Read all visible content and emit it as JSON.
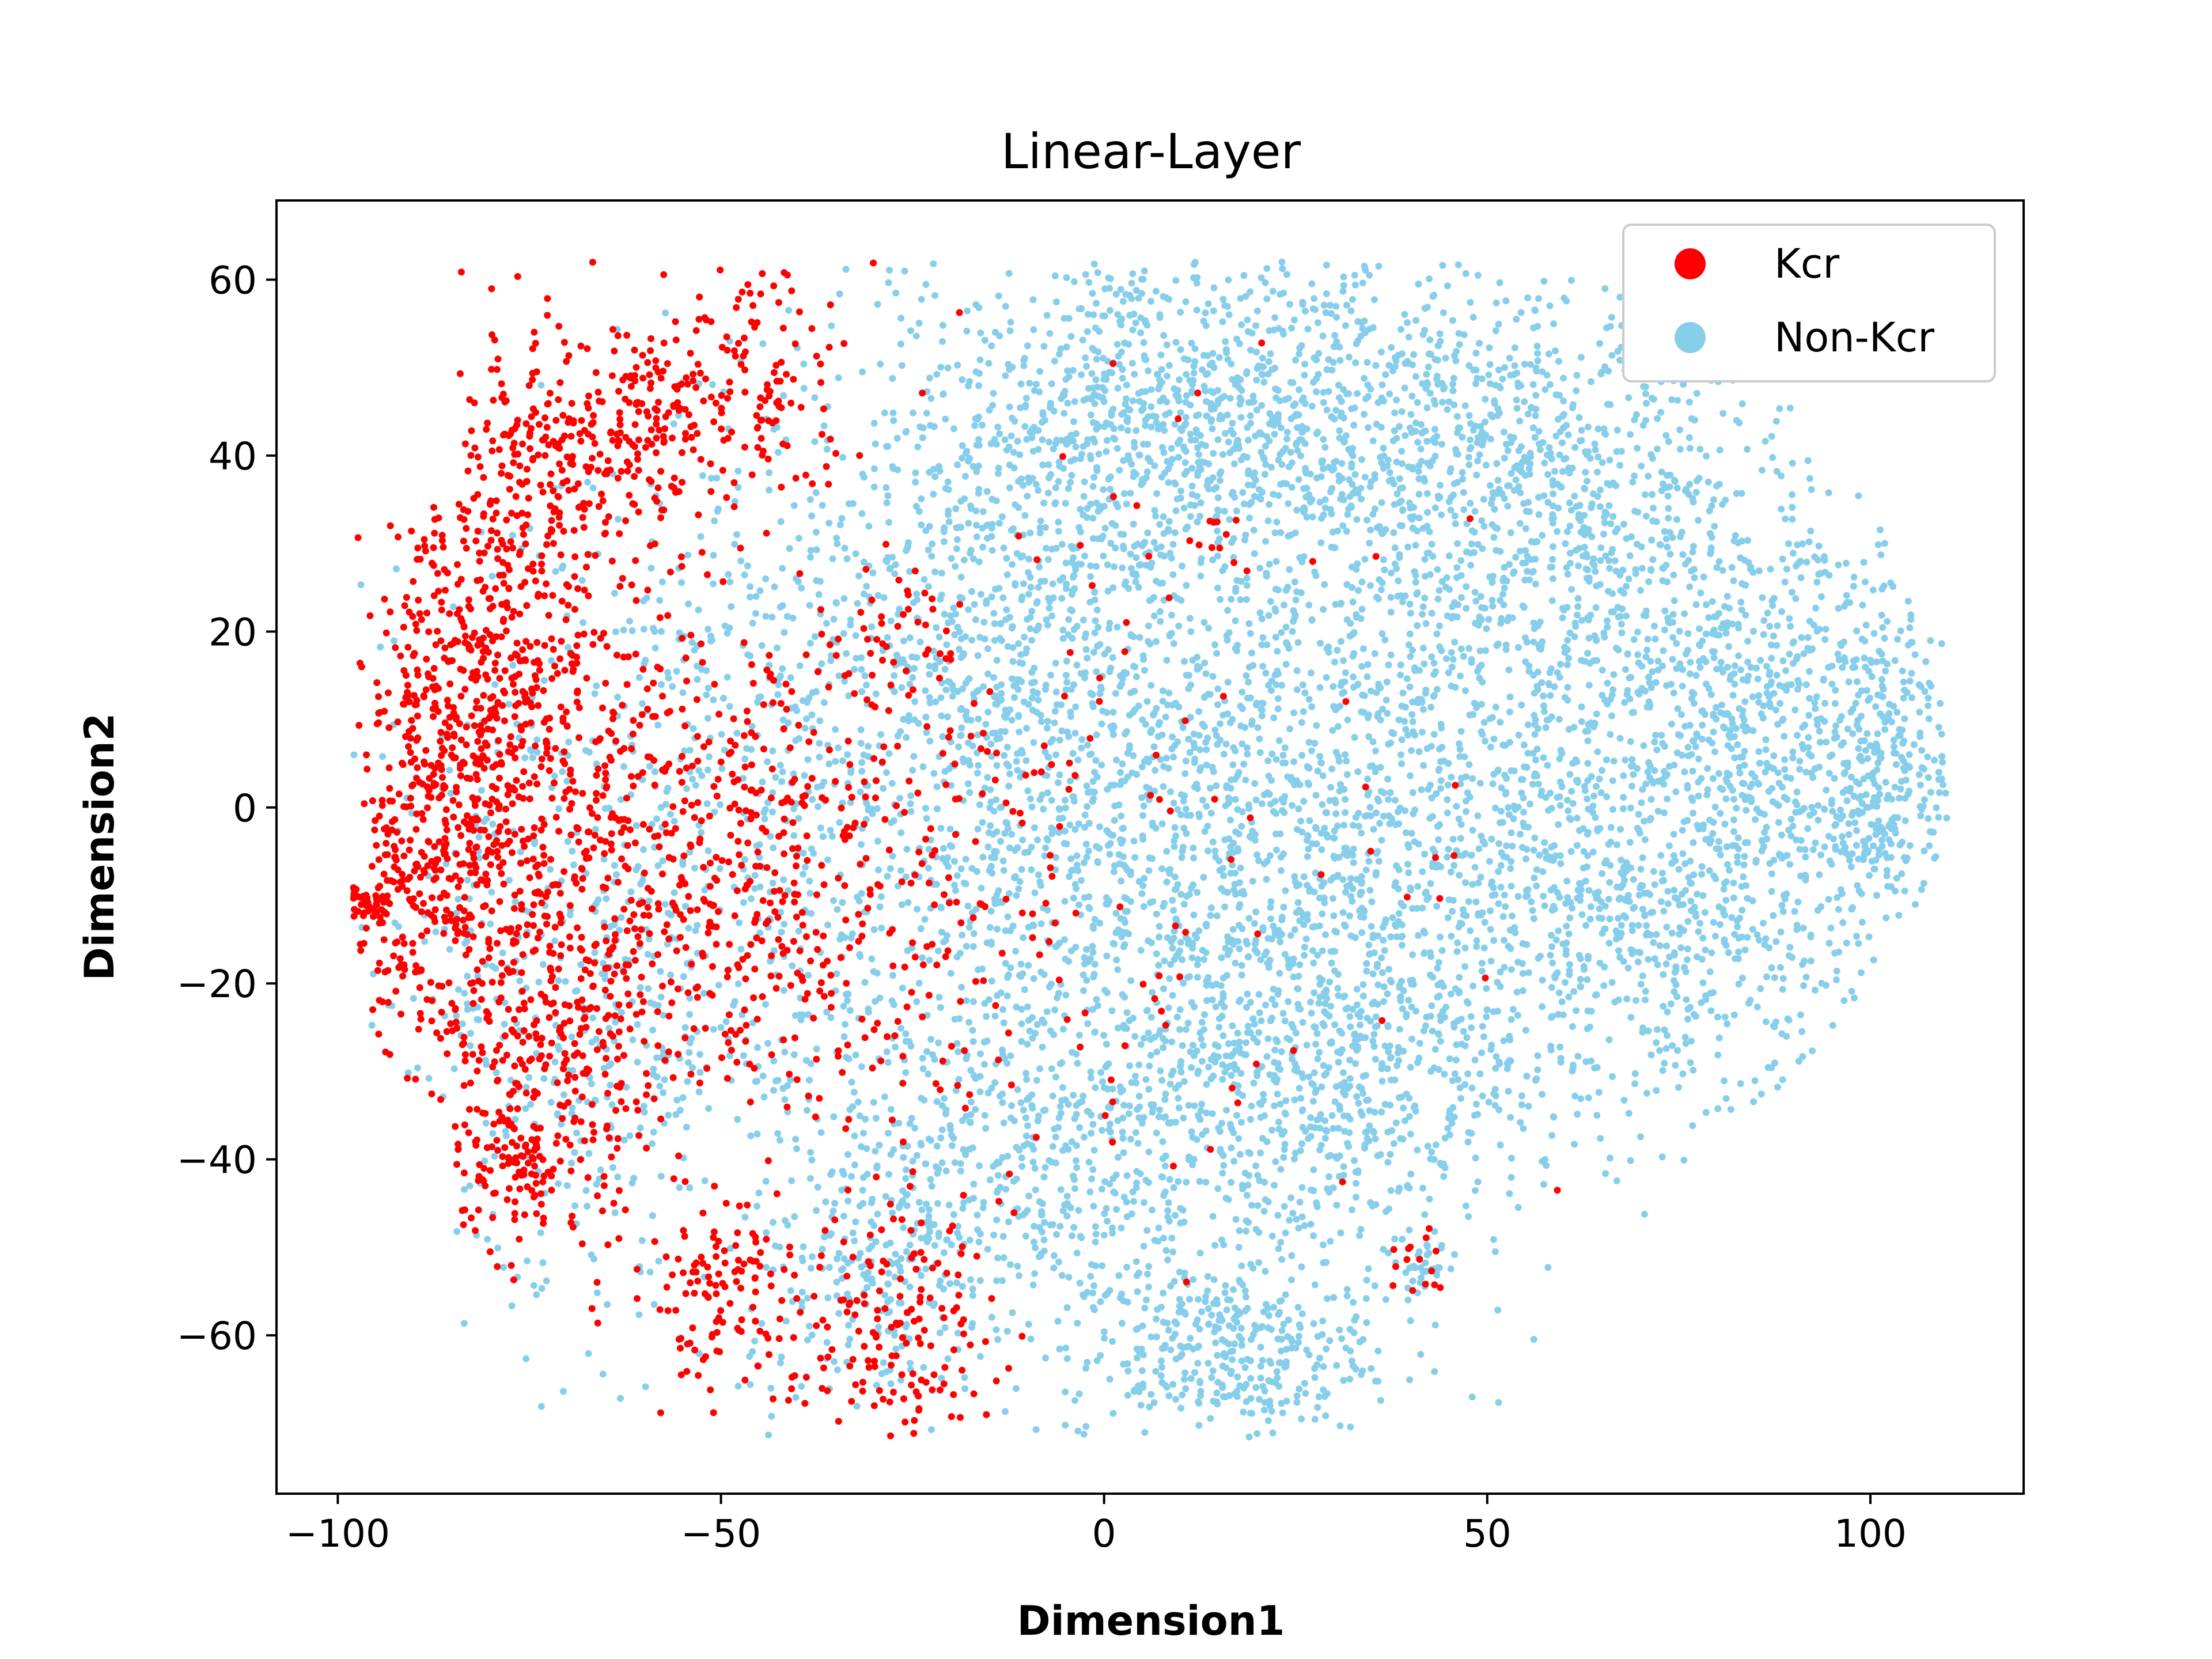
{
  "chart_data": {
    "type": "scatter",
    "title": "Linear-Layer",
    "xlabel": "Dimension1",
    "ylabel": "Dimension2",
    "xlim": [
      -108,
      120
    ],
    "ylim": [
      -78,
      69
    ],
    "xticks": [
      -100,
      -50,
      0,
      50,
      100
    ],
    "yticks": [
      -60,
      -40,
      -20,
      0,
      20,
      40,
      60
    ],
    "xtick_labels": [
      "−100",
      "−50",
      "0",
      "50",
      "100"
    ],
    "ytick_labels": [
      "−60",
      "−40",
      "−20",
      "0",
      "20",
      "40",
      "60"
    ],
    "grid": false,
    "legend_position": "top-right",
    "series": [
      {
        "name": "Kcr",
        "color": "#ff0000",
        "approx_point_count": 2500,
        "clusters": [
          {
            "cx": -82,
            "cy": 15,
            "sx": 7,
            "sy": 13,
            "n": 420
          },
          {
            "cx": -72,
            "cy": 38,
            "sx": 8,
            "sy": 8,
            "n": 220
          },
          {
            "cx": -60,
            "cy": 45,
            "sx": 6,
            "sy": 6,
            "n": 130
          },
          {
            "cx": -45,
            "cy": 48,
            "sx": 6,
            "sy": 8,
            "n": 120
          },
          {
            "cx": -88,
            "cy": -8,
            "sx": 6,
            "sy": 10,
            "n": 260
          },
          {
            "cx": -96,
            "cy": -11,
            "sx": 2,
            "sy": 1.2,
            "n": 40
          },
          {
            "cx": -70,
            "cy": -5,
            "sx": 12,
            "sy": 14,
            "n": 420
          },
          {
            "cx": -50,
            "cy": -5,
            "sx": 10,
            "sy": 14,
            "n": 260
          },
          {
            "cx": -75,
            "cy": -40,
            "sx": 6,
            "sy": 5,
            "n": 160
          },
          {
            "cx": -70,
            "cy": -25,
            "sx": 8,
            "sy": 8,
            "n": 150
          },
          {
            "cx": -50,
            "cy": -55,
            "sx": 6,
            "sy": 5,
            "n": 120
          },
          {
            "cx": -28,
            "cy": -60,
            "sx": 7,
            "sy": 7,
            "n": 150
          },
          {
            "cx": -28,
            "cy": -10,
            "sx": 10,
            "sy": 16,
            "n": 160
          },
          {
            "cx": -28,
            "cy": 20,
            "sx": 4,
            "sy": 4,
            "n": 40
          },
          {
            "cx": 0,
            "cy": 0,
            "sx": 25,
            "sy": 25,
            "n": 130
          },
          {
            "cx": 40,
            "cy": -52,
            "sx": 2,
            "sy": 2,
            "n": 15
          },
          {
            "cx": 15,
            "cy": 30,
            "sx": 2,
            "sy": 2,
            "n": 10
          }
        ]
      },
      {
        "name": "Non-Kcr",
        "color": "#87ceeb",
        "approx_point_count": 9000,
        "clusters": [
          {
            "cx": -40,
            "cy": 0,
            "sx": 20,
            "sy": 25,
            "n": 800
          },
          {
            "cx": -15,
            "cy": 20,
            "sx": 12,
            "sy": 22,
            "n": 600
          },
          {
            "cx": 5,
            "cy": 45,
            "sx": 12,
            "sy": 10,
            "n": 500
          },
          {
            "cx": 30,
            "cy": 45,
            "sx": 15,
            "sy": 10,
            "n": 600
          },
          {
            "cx": 60,
            "cy": 35,
            "sx": 12,
            "sy": 12,
            "n": 500
          },
          {
            "cx": 10,
            "cy": 0,
            "sx": 18,
            "sy": 20,
            "n": 1200
          },
          {
            "cx": 50,
            "cy": 0,
            "sx": 20,
            "sy": 20,
            "n": 1200
          },
          {
            "cx": 85,
            "cy": 10,
            "sx": 12,
            "sy": 15,
            "n": 700
          },
          {
            "cx": 102,
            "cy": 5,
            "sx": 4,
            "sy": 8,
            "n": 250
          },
          {
            "cx": 25,
            "cy": -30,
            "sx": 15,
            "sy": 12,
            "n": 700
          },
          {
            "cx": 15,
            "cy": -62,
            "sx": 10,
            "sy": 5,
            "n": 350
          },
          {
            "cx": -10,
            "cy": -40,
            "sx": 12,
            "sy": 10,
            "n": 400
          },
          {
            "cx": -30,
            "cy": -55,
            "sx": 8,
            "sy": 8,
            "n": 200
          },
          {
            "cx": -70,
            "cy": -20,
            "sx": 14,
            "sy": 20,
            "n": 400
          },
          {
            "cx": 40,
            "cy": -52,
            "sx": 3,
            "sy": 3,
            "n": 40
          },
          {
            "cx": 75,
            "cy": -15,
            "sx": 12,
            "sy": 8,
            "n": 300
          }
        ]
      }
    ]
  }
}
